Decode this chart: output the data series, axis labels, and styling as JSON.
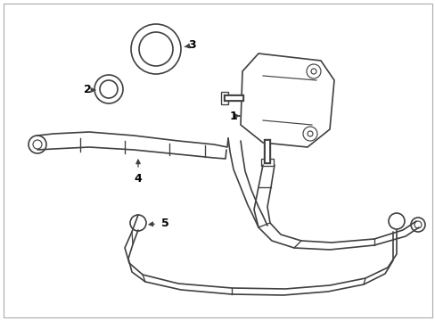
{
  "bg_color": "#ffffff",
  "line_color": "#404040",
  "label_color": "#000000",
  "fig_width": 4.89,
  "fig_height": 3.6,
  "dpi": 100,
  "border_color": "#cccccc"
}
